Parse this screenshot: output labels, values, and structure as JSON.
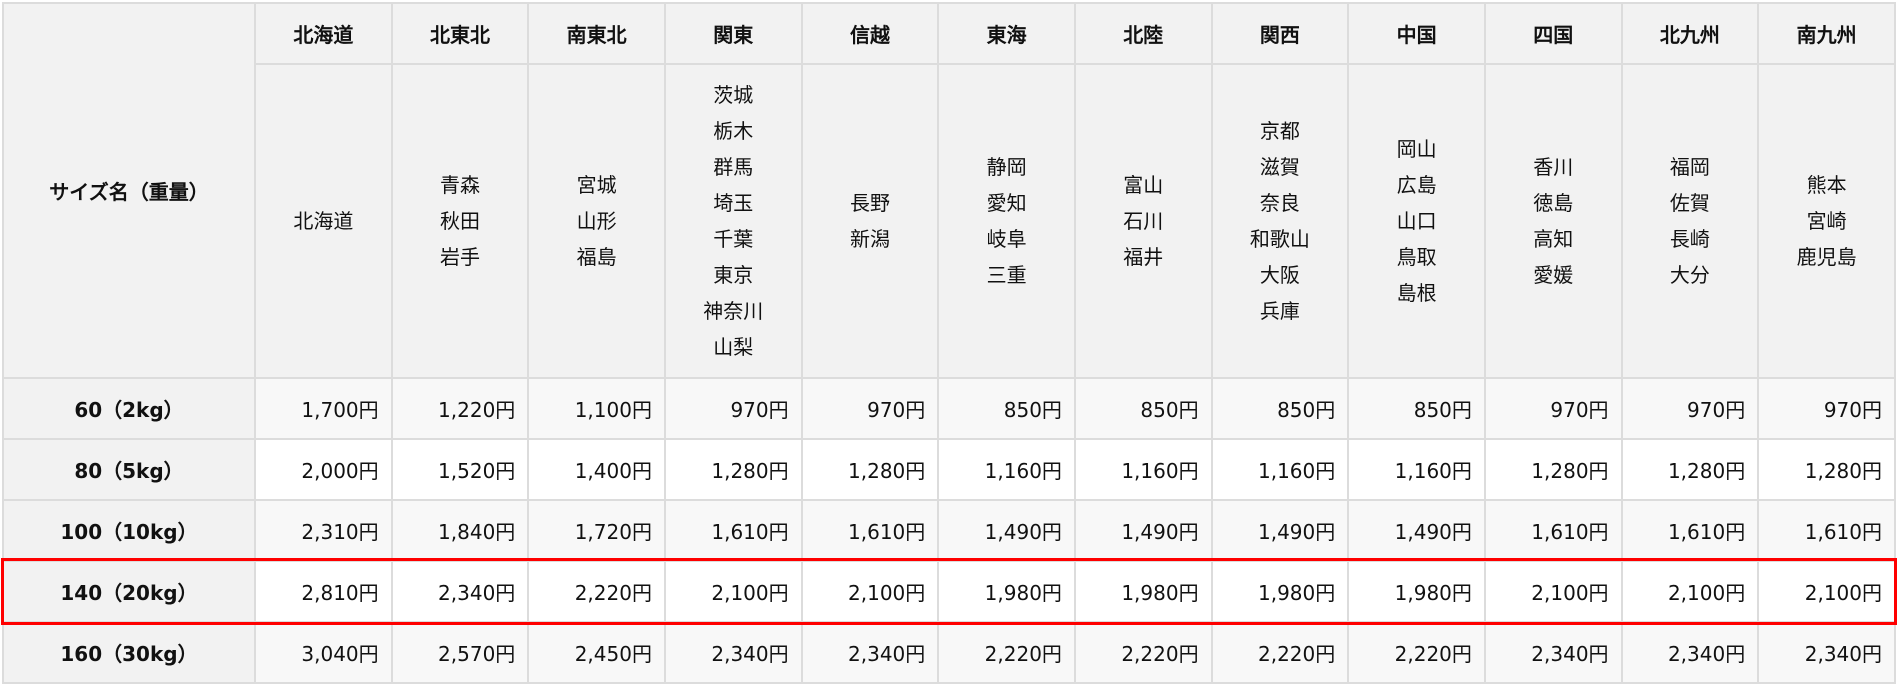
{
  "corner_label": "サイズ名（重量）",
  "regions": [
    {
      "name": "北海道",
      "prefectures": [
        "北海道"
      ]
    },
    {
      "name": "北東北",
      "prefectures": [
        "青森",
        "秋田",
        "岩手"
      ]
    },
    {
      "name": "南東北",
      "prefectures": [
        "宮城",
        "山形",
        "福島"
      ]
    },
    {
      "name": "関東",
      "prefectures": [
        "茨城",
        "栃木",
        "群馬",
        "埼玉",
        "千葉",
        "東京",
        "神奈川",
        "山梨"
      ]
    },
    {
      "name": "信越",
      "prefectures": [
        "長野",
        "新潟"
      ]
    },
    {
      "name": "東海",
      "prefectures": [
        "静岡",
        "愛知",
        "岐阜",
        "三重"
      ]
    },
    {
      "name": "北陸",
      "prefectures": [
        "富山",
        "石川",
        "福井"
      ]
    },
    {
      "name": "関西",
      "prefectures": [
        "京都",
        "滋賀",
        "奈良",
        "和歌山",
        "大阪",
        "兵庫"
      ]
    },
    {
      "name": "中国",
      "prefectures": [
        "岡山",
        "広島",
        "山口",
        "鳥取",
        "島根"
      ]
    },
    {
      "name": "四国",
      "prefectures": [
        "香川",
        "徳島",
        "高知",
        "愛媛"
      ]
    },
    {
      "name": "北九州",
      "prefectures": [
        "福岡",
        "佐賀",
        "長崎",
        "大分"
      ]
    },
    {
      "name": "南九州",
      "prefectures": [
        "熊本",
        "宮崎",
        "鹿児島"
      ]
    }
  ],
  "rows": [
    {
      "size": "60（2kg）",
      "prices": [
        "1,700円",
        "1,220円",
        "1,100円",
        "970円",
        "970円",
        "850円",
        "850円",
        "850円",
        "850円",
        "970円",
        "970円",
        "970円"
      ]
    },
    {
      "size": "80（5kg）",
      "prices": [
        "2,000円",
        "1,520円",
        "1,400円",
        "1,280円",
        "1,280円",
        "1,160円",
        "1,160円",
        "1,160円",
        "1,160円",
        "1,280円",
        "1,280円",
        "1,280円"
      ]
    },
    {
      "size": "100（10kg）",
      "prices": [
        "2,310円",
        "1,840円",
        "1,720円",
        "1,610円",
        "1,610円",
        "1,490円",
        "1,490円",
        "1,490円",
        "1,490円",
        "1,610円",
        "1,610円",
        "1,610円"
      ]
    },
    {
      "size": "140（20kg）",
      "prices": [
        "2,810円",
        "2,340円",
        "2,220円",
        "2,100円",
        "2,100円",
        "1,980円",
        "1,980円",
        "1,980円",
        "1,980円",
        "2,100円",
        "2,100円",
        "2,100円"
      ],
      "highlighted": true
    },
    {
      "size": "160（30kg）",
      "prices": [
        "3,040円",
        "2,570円",
        "2,450円",
        "2,340円",
        "2,340円",
        "2,220円",
        "2,220円",
        "2,220円",
        "2,220円",
        "2,340円",
        "2,340円",
        "2,340円"
      ]
    }
  ],
  "highlight_color": "#ff0000"
}
